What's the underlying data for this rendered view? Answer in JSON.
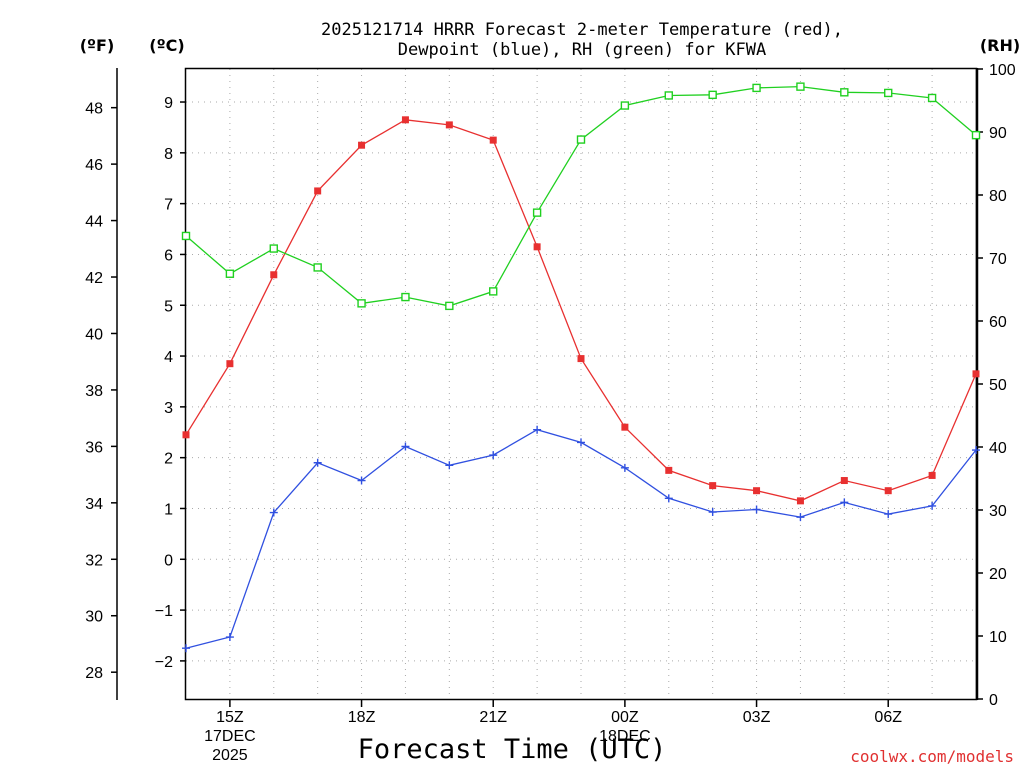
{
  "chart_data": {
    "type": "line",
    "title_line1": "2025121714 HRRR Forecast 2-meter Temperature (red),",
    "title_line2": "Dewpoint (blue), RH (green) for KFWA",
    "xlabel": "Forecast Time (UTC)",
    "watermark": "coolwx.com/models",
    "left_unit_f": "(ºF)",
    "left_unit_c": "(ºC)",
    "right_unit": "(RH)",
    "x_hours": [
      14,
      15,
      16,
      17,
      18,
      19,
      20,
      21,
      22,
      23,
      24,
      25,
      26,
      27,
      28,
      29,
      30,
      31,
      32
    ],
    "x_tick_labels": [
      {
        "hour": 15,
        "lines": [
          "15Z",
          "17DEC",
          "2025"
        ]
      },
      {
        "hour": 18,
        "lines": [
          "18Z"
        ]
      },
      {
        "hour": 21,
        "lines": [
          "21Z"
        ]
      },
      {
        "hour": 24,
        "lines": [
          "00Z",
          "18DEC"
        ]
      },
      {
        "hour": 27,
        "lines": [
          "03Z"
        ]
      },
      {
        "hour": 30,
        "lines": [
          "06Z"
        ]
      }
    ],
    "xlim": [
      14,
      32
    ],
    "ylim_c": [
      -2.75,
      9.65
    ],
    "yticks_c": [
      -2,
      -1,
      0,
      1,
      2,
      3,
      4,
      5,
      6,
      7,
      8,
      9
    ],
    "yticks_f": [
      28,
      30,
      32,
      34,
      36,
      38,
      40,
      42,
      44,
      46,
      48
    ],
    "ylim_rh": [
      0,
      100
    ],
    "yticks_rh": [
      0,
      10,
      20,
      30,
      40,
      50,
      60,
      70,
      80,
      90,
      100
    ],
    "grid": true,
    "series": [
      {
        "name": "Temperature (red)",
        "axis": "c",
        "color": "#e83030",
        "marker": "filled-square",
        "values": [
          2.45,
          3.85,
          5.6,
          7.25,
          8.15,
          8.65,
          8.55,
          8.25,
          6.15,
          3.95,
          2.6,
          1.75,
          1.45,
          1.35,
          1.15,
          1.55,
          1.35,
          1.65,
          3.65
        ]
      },
      {
        "name": "Dewpoint (blue)",
        "axis": "c",
        "color": "#3050e0",
        "marker": "plus",
        "values": [
          -1.75,
          -1.53,
          0.92,
          1.9,
          1.55,
          2.22,
          1.85,
          2.05,
          2.55,
          2.3,
          1.8,
          1.2,
          0.93,
          0.98,
          0.83,
          1.12,
          0.89,
          1.05,
          2.15
        ]
      },
      {
        "name": "RH (green)",
        "axis": "rh",
        "color": "#20d020",
        "marker": "open-square",
        "values": [
          73.5,
          67.5,
          71.5,
          68.5,
          62.8,
          63.8,
          62.4,
          64.7,
          77.2,
          88.8,
          94.2,
          95.8,
          95.9,
          97.0,
          97.2,
          96.3,
          96.2,
          95.4,
          89.5
        ]
      }
    ]
  }
}
